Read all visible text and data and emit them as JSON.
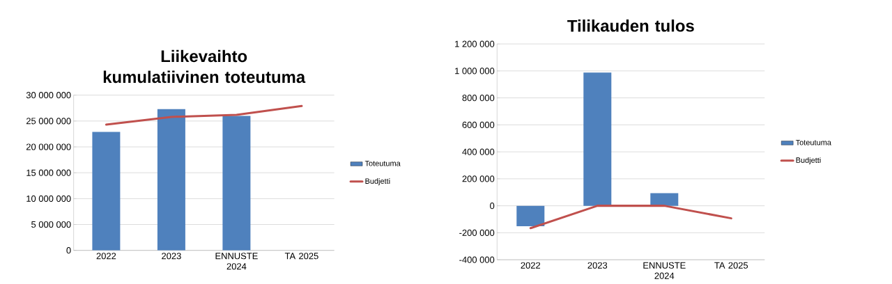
{
  "chart_data": [
    {
      "type": "bar",
      "title": "Liikevaihto kumulatiivinen toteutuma",
      "categories": [
        "2022",
        "2023",
        "ENNUSTE 2024",
        "TA 2025"
      ],
      "series": [
        {
          "name": "Toteutuma",
          "color": "#4f81bd",
          "values": [
            22900000,
            27300000,
            26000000,
            null
          ]
        },
        {
          "name": "Budjetti",
          "type": "line",
          "color": "#c0504d",
          "values": [
            24300000,
            25800000,
            26200000,
            27900000
          ]
        }
      ],
      "ylim": [
        0,
        30000000
      ],
      "yticks": [
        {
          "value": 0,
          "label": "0"
        },
        {
          "value": 5000000,
          "label": "5 000 000"
        },
        {
          "value": 10000000,
          "label": "10 000 000"
        },
        {
          "value": 15000000,
          "label": "15 000 000"
        },
        {
          "value": 20000000,
          "label": "20 000 000"
        },
        {
          "value": 25000000,
          "label": "25 000 000"
        },
        {
          "value": 30000000,
          "label": "30 000 000"
        }
      ],
      "grid": "y",
      "legend": "right"
    },
    {
      "type": "bar",
      "title": "Tilikauden tulos",
      "categories": [
        "2022",
        "2023",
        "ENNUSTE 2024",
        "TA 2025"
      ],
      "series": [
        {
          "name": "Toteutuma",
          "color": "#4f81bd",
          "values": [
            -152000,
            988000,
            93000,
            null
          ]
        },
        {
          "name": "Budjetti",
          "type": "line",
          "color": "#c0504d",
          "values": [
            -166000,
            0,
            0,
            -93000
          ]
        }
      ],
      "ylim": [
        -400000,
        1200000
      ],
      "yticks": [
        {
          "value": -400000,
          "label": "-400 000"
        },
        {
          "value": -200000,
          "label": "-200 000"
        },
        {
          "value": 0,
          "label": "0"
        },
        {
          "value": 200000,
          "label": "200 000"
        },
        {
          "value": 400000,
          "label": "400 000"
        },
        {
          "value": 600000,
          "label": "600 000"
        },
        {
          "value": 800000,
          "label": "800 000"
        },
        {
          "value": 1000000,
          "label": "1 000 000"
        },
        {
          "value": 1200000,
          "label": "1 200 000"
        }
      ],
      "grid": "y",
      "legend": "right"
    }
  ]
}
